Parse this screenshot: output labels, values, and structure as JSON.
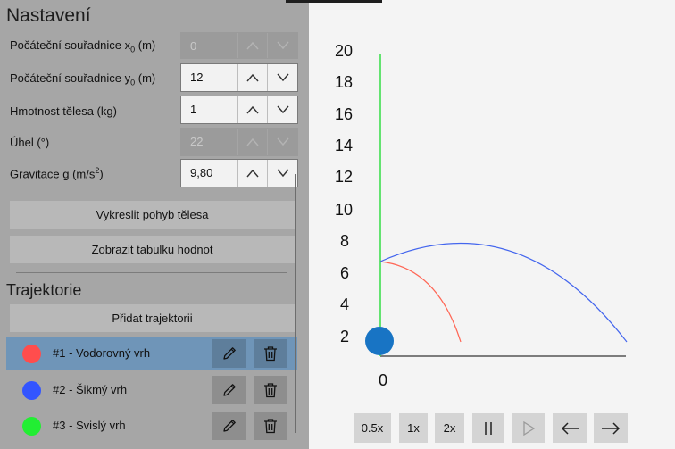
{
  "settings": {
    "title": "Nastavení",
    "x0": {
      "label_main": "Počáteční souřadnice x",
      "label_sub": "0",
      "label_unit": " (m)",
      "value": "0"
    },
    "y0": {
      "label_main": "Počáteční souřadnice y",
      "label_sub": "0",
      "label_unit": " (m)",
      "value": "12"
    },
    "mass": {
      "label": "Hmotnost tělesa (kg)",
      "value": "1"
    },
    "angle": {
      "label": "Úhel (°)",
      "value": "22"
    },
    "gravity": {
      "label_main": "Gravitace g (m/s",
      "label_sup": "2",
      "label_end": ")",
      "value": "9,80"
    },
    "draw_button": "Vykreslit pohyb tělesa",
    "table_button": "Zobrazit tabulku hodnot"
  },
  "trajectories": {
    "title": "Trajektorie",
    "add_button": "Přidat trajektorii",
    "items": [
      {
        "name": "#1 - Vodorovný vrh",
        "color": "#ff4d4d",
        "selected": true
      },
      {
        "name": "#2 - Šikmý vrh",
        "color": "#3355ff",
        "selected": false
      },
      {
        "name": "#3 - Svislý vrh",
        "color": "#22ee33",
        "selected": false
      }
    ]
  },
  "chart": {
    "y_ticks": [
      "20",
      "18",
      "16",
      "14",
      "12",
      "10",
      "8",
      "6",
      "4",
      "2"
    ],
    "x_zero": "0",
    "colors": {
      "vertical": "#33dd44",
      "horizontal": "#ff6655",
      "oblique": "#4466ee",
      "ball": "#1874c4"
    }
  },
  "controls": {
    "speed_half": "0.5x",
    "speed_1": "1x",
    "speed_2": "2x"
  }
}
